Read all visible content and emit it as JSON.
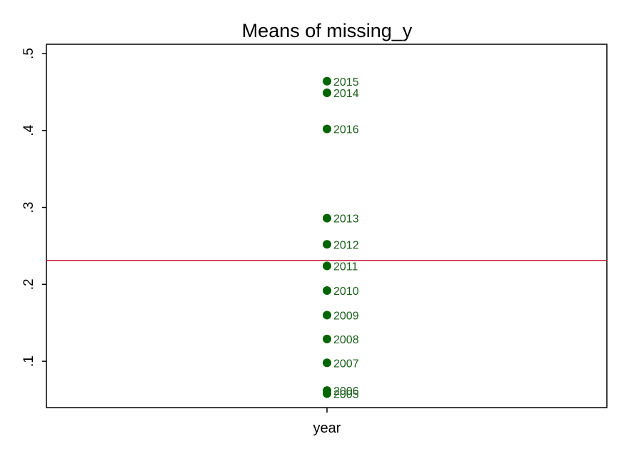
{
  "chart_data": {
    "type": "scatter",
    "title": "Means of missing_y",
    "xlabel": "",
    "ylabel": "",
    "categories": [
      "year"
    ],
    "ylim": [
      0.05,
      0.5
    ],
    "yticks": [
      0.1,
      0.2,
      0.3,
      0.4,
      0.5
    ],
    "ytick_labels": [
      ".1",
      ".2",
      ".3",
      ".4",
      ".5"
    ],
    "reference_line": {
      "y": 0.231,
      "color": "#C8102E"
    },
    "marker_color": "#006400",
    "label_color": "#1A5E1A",
    "grid": false,
    "points": [
      {
        "label": "2005",
        "x": "year",
        "y": 0.058
      },
      {
        "label": "2006",
        "x": "year",
        "y": 0.062
      },
      {
        "label": "2007",
        "x": "year",
        "y": 0.098
      },
      {
        "label": "2008",
        "x": "year",
        "y": 0.129
      },
      {
        "label": "2009",
        "x": "year",
        "y": 0.16
      },
      {
        "label": "2010",
        "x": "year",
        "y": 0.192
      },
      {
        "label": "2011",
        "x": "year",
        "y": 0.224
      },
      {
        "label": "2012",
        "x": "year",
        "y": 0.252
      },
      {
        "label": "2013",
        "x": "year",
        "y": 0.286
      },
      {
        "label": "2014",
        "x": "year",
        "y": 0.449
      },
      {
        "label": "2015",
        "x": "year",
        "y": 0.464
      },
      {
        "label": "2016",
        "x": "year",
        "y": 0.402
      }
    ]
  }
}
